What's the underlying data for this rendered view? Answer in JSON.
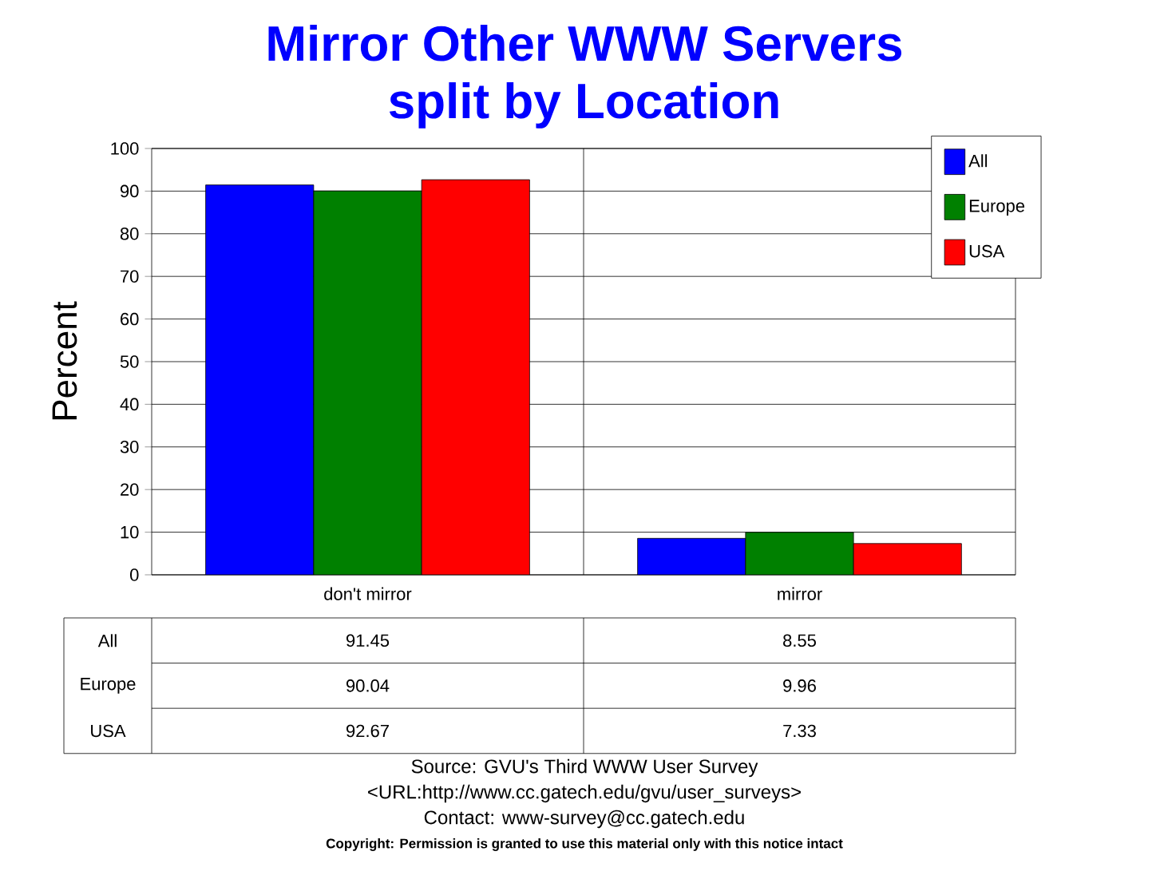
{
  "chart_data": {
    "type": "bar",
    "title": "Mirror Other WWW Servers\nsplit by Location",
    "ylabel": "Percent",
    "categories": [
      "don't mirror",
      "mirror"
    ],
    "series": [
      {
        "name": "All",
        "color": "#0000ff",
        "values": [
          91.45,
          8.55
        ],
        "value_labels": [
          "91.45",
          "8.55"
        ]
      },
      {
        "name": "Europe",
        "color": "#008000",
        "values": [
          90.04,
          9.96
        ],
        "value_labels": [
          "90.04",
          "9.96"
        ]
      },
      {
        "name": "USA",
        "color": "#ff0000",
        "values": [
          92.67,
          7.33
        ],
        "value_labels": [
          "92.67",
          "7.33"
        ]
      }
    ],
    "ylim": [
      0,
      100
    ],
    "yticks": [
      0,
      10,
      20,
      30,
      40,
      50,
      60,
      70,
      80,
      90,
      100
    ],
    "grid": "y",
    "legend": "top right",
    "annotations": [
      "Source: GVU's Third WWW User Survey",
      "<URL:http://www.cc.gatech.edu/gvu/user_surveys>",
      "Contact: www-survey@cc.gatech.edu",
      "Copyright: Permission is granted to use this material only with this notice intact"
    ]
  }
}
